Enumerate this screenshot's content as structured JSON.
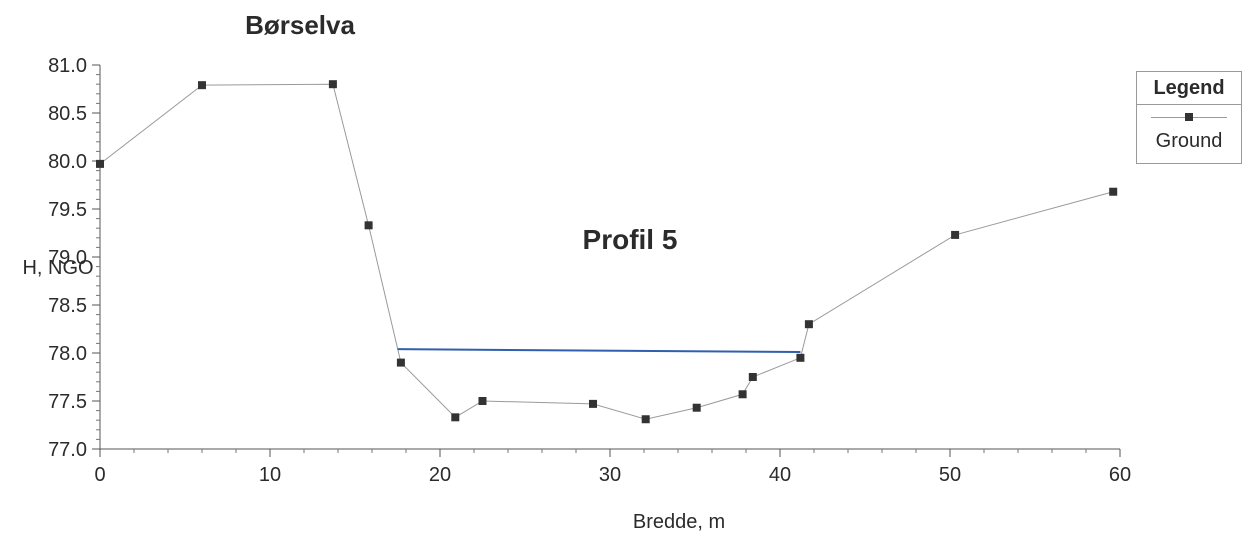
{
  "chart_data": {
    "type": "line",
    "title": "Børselva",
    "annotation": "Profil 5",
    "xlabel": "Bredde, m",
    "ylabel": "H, NGO",
    "xlim": [
      0,
      60
    ],
    "ylim": [
      77.0,
      81.0
    ],
    "xticks": [
      "0",
      "10",
      "20",
      "30",
      "40",
      "50",
      "60"
    ],
    "yticks": [
      "77.0",
      "77.5",
      "78.0",
      "78.5",
      "79.0",
      "79.5",
      "80.0",
      "80.5",
      "81.0"
    ],
    "legend": {
      "title": "Legend",
      "position": "right"
    },
    "series": [
      {
        "name": "Ground",
        "color": "#9a9a9a",
        "marker_color": "#333333",
        "points": [
          [
            0,
            79.97
          ],
          [
            6,
            80.79
          ],
          [
            13.7,
            80.8
          ],
          [
            15.8,
            79.33
          ],
          [
            17.7,
            77.9
          ],
          [
            20.9,
            77.33
          ],
          [
            22.5,
            77.5
          ],
          [
            29.0,
            77.47
          ],
          [
            32.1,
            77.31
          ],
          [
            35.1,
            77.43
          ],
          [
            37.8,
            77.57
          ],
          [
            38.4,
            77.75
          ],
          [
            41.2,
            77.95
          ],
          [
            41.7,
            78.3
          ],
          [
            50.3,
            79.23
          ],
          [
            59.6,
            79.68
          ]
        ]
      },
      {
        "color": "#2f5fae",
        "points": [
          [
            17.5,
            78.04
          ],
          [
            41.2,
            78.01
          ]
        ]
      }
    ]
  }
}
